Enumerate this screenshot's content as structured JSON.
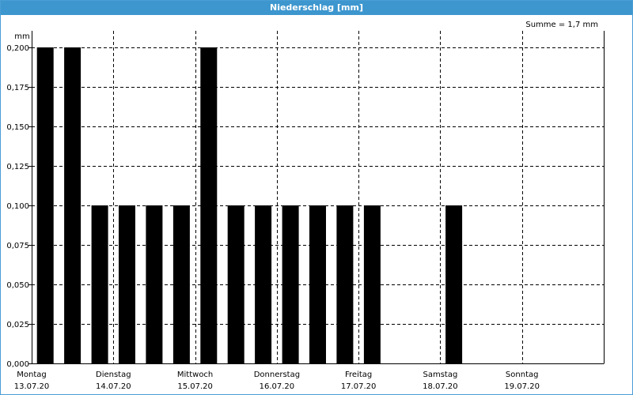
{
  "window": {
    "title": "Niederschlag [mm]"
  },
  "summary": "Summe = 1,7 mm",
  "colors": {
    "title_bar": "#3d96ce",
    "bars": "#000000",
    "grid": "#000000"
  },
  "chart_data": {
    "type": "bar",
    "title": "Niederschlag [mm]",
    "ylabel": "mm",
    "ylim": [
      0,
      0.2
    ],
    "yticks": [
      0,
      0.025,
      0.05,
      0.075,
      0.1,
      0.125,
      0.15,
      0.175,
      0.2
    ],
    "ytick_labels": [
      "0,000",
      "0,025",
      "0,050",
      "0,075",
      "0,100",
      "0,125",
      "0,150",
      "0,175",
      "0,200"
    ],
    "grid": true,
    "days": [
      {
        "name": "Montag",
        "date": "13.07.20"
      },
      {
        "name": "Dienstag",
        "date": "14.07.20"
      },
      {
        "name": "Mittwoch",
        "date": "15.07.20"
      },
      {
        "name": "Donnerstag",
        "date": "16.07.20"
      },
      {
        "name": "Freitag",
        "date": "17.07.20"
      },
      {
        "name": "Samstag",
        "date": "18.07.20"
      },
      {
        "name": "Sonntag",
        "date": "19.07.20"
      }
    ],
    "slots_per_day": 3,
    "bars": [
      {
        "day": 0,
        "slot": 0,
        "value": 0.2
      },
      {
        "day": 0,
        "slot": 1,
        "value": 0.2
      },
      {
        "day": 0,
        "slot": 2,
        "value": 0.1
      },
      {
        "day": 1,
        "slot": 0,
        "value": 0.1
      },
      {
        "day": 1,
        "slot": 1,
        "value": 0.1
      },
      {
        "day": 1,
        "slot": 2,
        "value": 0.1
      },
      {
        "day": 2,
        "slot": 0,
        "value": 0.2
      },
      {
        "day": 2,
        "slot": 1,
        "value": 0.1
      },
      {
        "day": 2,
        "slot": 2,
        "value": 0.1
      },
      {
        "day": 3,
        "slot": 0,
        "value": 0.1
      },
      {
        "day": 3,
        "slot": 1,
        "value": 0.1
      },
      {
        "day": 3,
        "slot": 2,
        "value": 0.1
      },
      {
        "day": 4,
        "slot": 0,
        "value": 0.1
      },
      {
        "day": 5,
        "slot": 0,
        "value": 0.1
      }
    ]
  }
}
